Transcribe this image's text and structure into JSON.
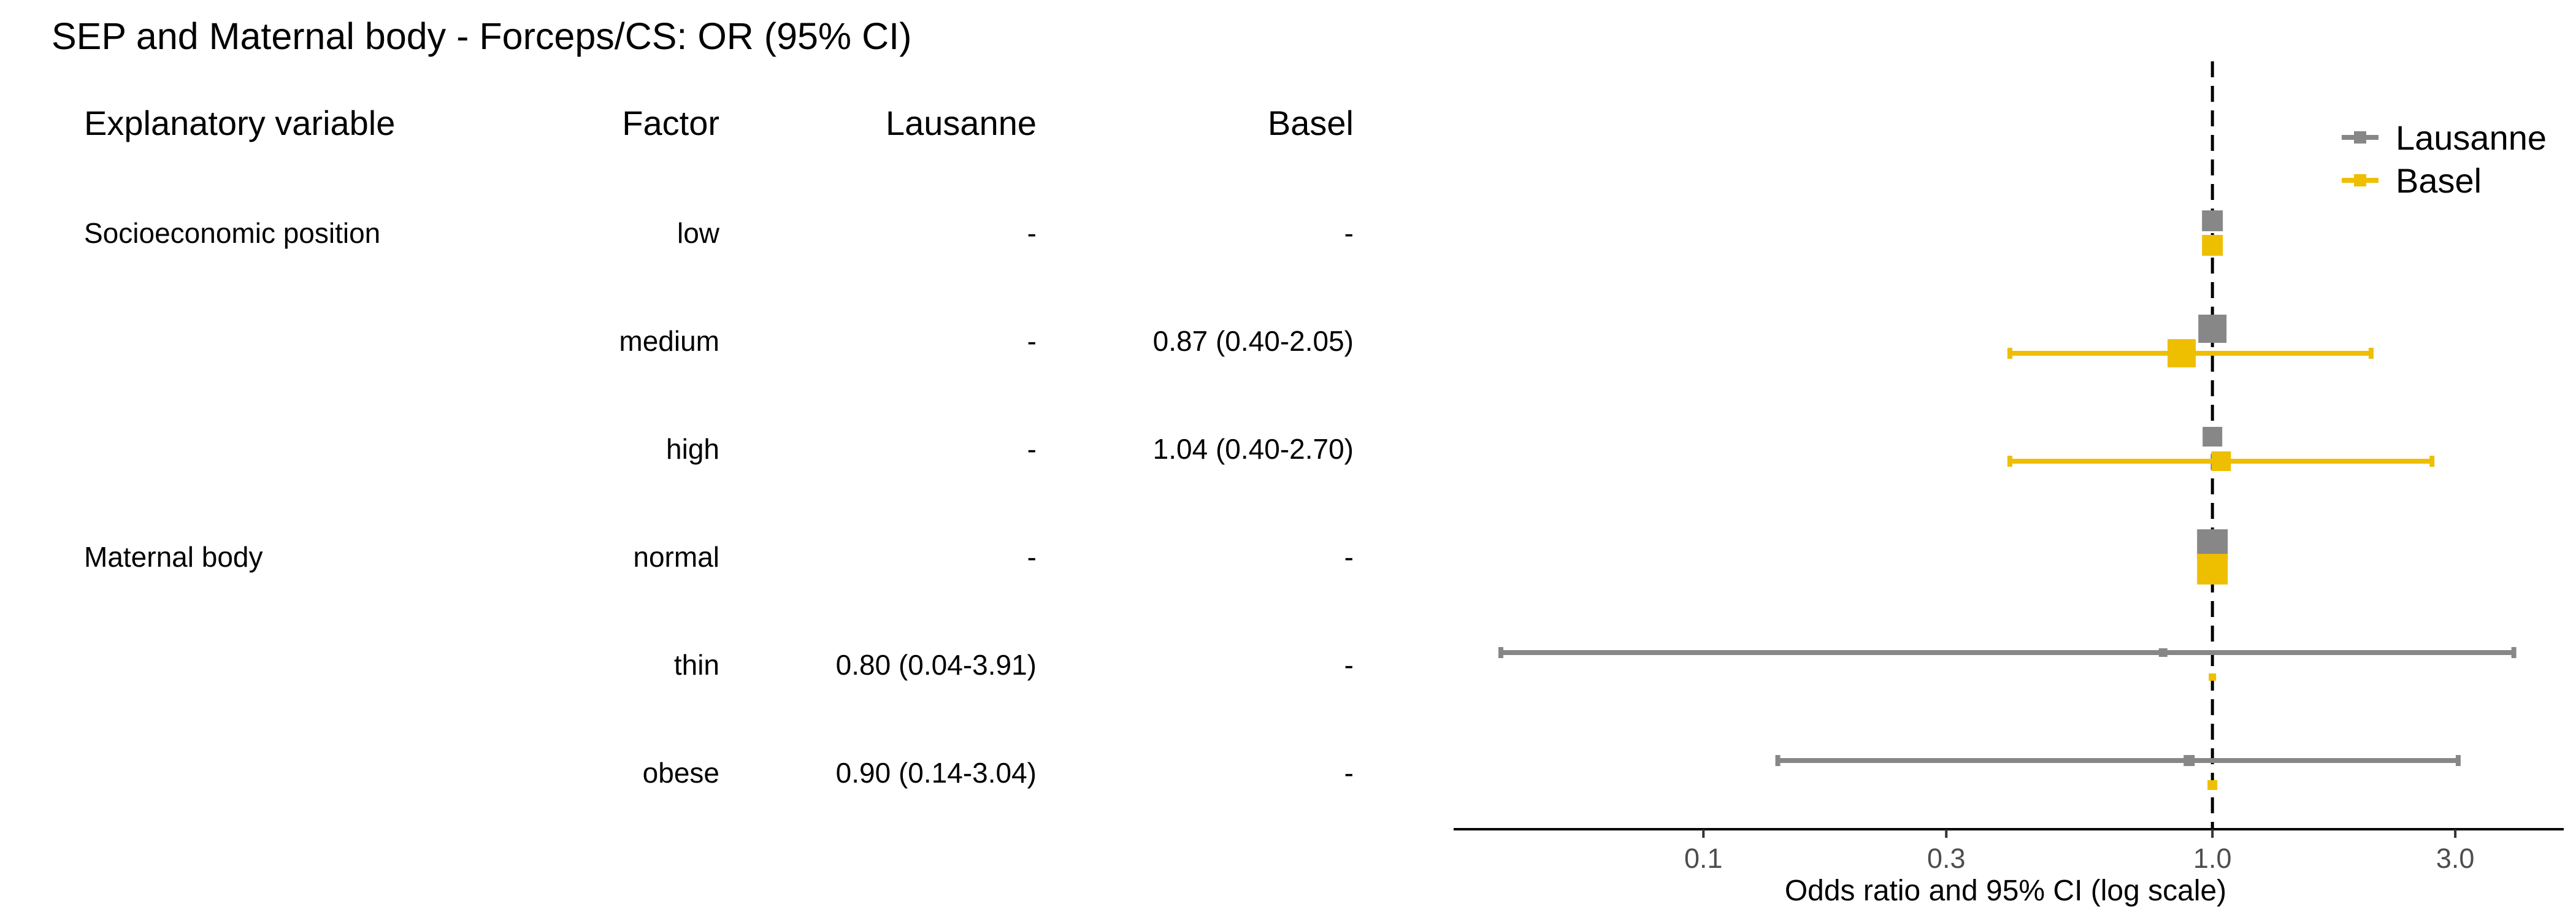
{
  "chart_data": {
    "type": "forest",
    "title": "SEP and Maternal body - Forceps/CS: OR (95% CI)",
    "table_headers": {
      "variable": "Explanatory variable",
      "factor": "Factor",
      "lausanne": "Lausanne",
      "basel": "Basel"
    },
    "rows": [
      {
        "variable": "Socioeconomic position",
        "factor": "low",
        "lausanne_text": "-",
        "basel_text": "-",
        "lausanne": {
          "or": 1.0,
          "lo": null,
          "hi": null,
          "size": 34
        },
        "basel": {
          "or": 1.0,
          "lo": null,
          "hi": null,
          "size": 34
        }
      },
      {
        "variable": "",
        "factor": "medium",
        "lausanne_text": "-",
        "basel_text": "0.87 (0.40-2.05)",
        "lausanne": {
          "or": 1.0,
          "lo": null,
          "hi": null,
          "size": 46
        },
        "basel": {
          "or": 0.87,
          "lo": 0.4,
          "hi": 2.05,
          "size": 46
        }
      },
      {
        "variable": "",
        "factor": "high",
        "lausanne_text": "-",
        "basel_text": "1.04 (0.40-2.70)",
        "lausanne": {
          "or": 1.0,
          "lo": null,
          "hi": null,
          "size": 32
        },
        "basel": {
          "or": 1.04,
          "lo": 0.4,
          "hi": 2.7,
          "size": 32
        }
      },
      {
        "variable": "Maternal body",
        "factor": "normal",
        "lausanne_text": "-",
        "basel_text": "-",
        "lausanne": {
          "or": 1.0,
          "lo": null,
          "hi": null,
          "size": 50
        },
        "basel": {
          "or": 1.0,
          "lo": null,
          "hi": null,
          "size": 50
        }
      },
      {
        "variable": "",
        "factor": "thin",
        "lausanne_text": "0.80 (0.04-3.91)",
        "basel_text": "-",
        "lausanne": {
          "or": 0.8,
          "lo": 0.04,
          "hi": 3.91,
          "size": 14
        },
        "basel": {
          "or": 1.0,
          "lo": null,
          "hi": null,
          "size": 12
        }
      },
      {
        "variable": "",
        "factor": "obese",
        "lausanne_text": "0.90 (0.14-3.04)",
        "basel_text": "-",
        "lausanne": {
          "or": 0.9,
          "lo": 0.14,
          "hi": 3.04,
          "size": 18
        },
        "basel": {
          "or": 1.0,
          "lo": null,
          "hi": null,
          "size": 16
        }
      }
    ],
    "series": [
      {
        "name": "Lausanne",
        "color": "#878787"
      },
      {
        "name": "Basel",
        "color": "#EEBF00"
      }
    ],
    "xaxis": {
      "label": "Odds ratio and 95% CI (log scale)",
      "scale": "log",
      "ticks": [
        0.1,
        0.3,
        1.0,
        3.0
      ],
      "tick_labels": [
        "0.1",
        "0.3",
        "1.0",
        "3.0"
      ],
      "xlim": [
        0.0323,
        4.9
      ],
      "reference_line": 1.0
    },
    "legend_position": "top-right",
    "grid": false
  }
}
